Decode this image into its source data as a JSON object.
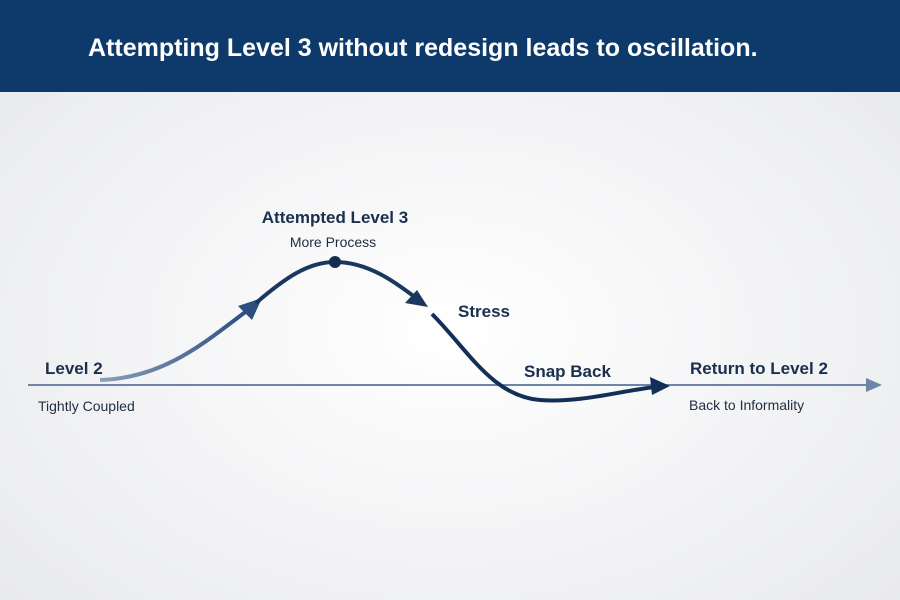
{
  "header": {
    "title": "Attempting Level 3 without redesign leads to oscillation."
  },
  "nodes": [
    {
      "label": "Level 2",
      "sublabel": "Tightly Coupled"
    },
    {
      "label": "Attempted Level 3",
      "sublabel": "More Process"
    },
    {
      "label": "Stress"
    },
    {
      "label": "Snap Back"
    },
    {
      "label": "Return to Level 2",
      "sublabel": "Back to Informality"
    }
  ]
}
